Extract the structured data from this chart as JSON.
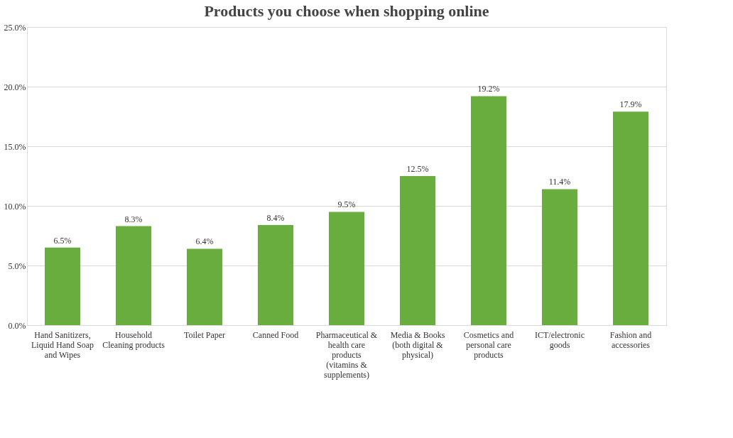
{
  "chart_data": {
    "type": "bar",
    "title": "Products you choose when shopping online",
    "categories": [
      "Hand Sanitizers, Liquid Hand Soap and Wipes",
      "Household Cleaning products",
      "Toilet Paper",
      "Canned Food",
      "Pharmaceutical & health care products (vitamins & supplements)",
      "Media & Books (both digital & physical)",
      "Cosmetics and personal care products",
      "ICT/electronic goods",
      "Fashion and accessories"
    ],
    "values": [
      6.5,
      8.3,
      6.4,
      8.4,
      9.5,
      12.5,
      19.2,
      11.4,
      17.9
    ],
    "value_labels": [
      "6.5%",
      "8.3%",
      "6.4%",
      "8.4%",
      "9.5%",
      "12.5%",
      "19.2%",
      "11.4%",
      "17.9%"
    ],
    "color": "#6aad3f",
    "ylim": [
      0,
      25
    ],
    "yticks": [
      {
        "value": 0,
        "label": "0.0%"
      },
      {
        "value": 5,
        "label": "5.0%"
      },
      {
        "value": 10,
        "label": "10.0%"
      },
      {
        "value": 15,
        "label": "15.0%"
      },
      {
        "value": 20,
        "label": "20.0%"
      },
      {
        "value": 25,
        "label": "25.0%"
      }
    ],
    "grid": "y"
  }
}
